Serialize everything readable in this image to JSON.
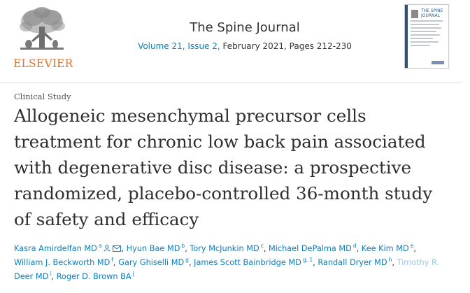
{
  "publisher": {
    "name": "ELSEVIER"
  },
  "journal": {
    "title": "The Spine Journal",
    "volume_issue": "Volume 21, Issue 2,",
    "date_pages": " February 2021, Pages 212-230"
  },
  "cover": {
    "title": "THE SPINE JOURNAL"
  },
  "article": {
    "type": "Clinical Study",
    "title_lines": [
      "Allogeneic mesenchymal precursor cells",
      "treatment for chronic low back pain associated",
      "with degenerative disc disease: a prospective",
      "randomized, placebo-controlled 36-month study",
      "of safety and efficacy"
    ]
  },
  "authors": [
    {
      "name": "Kasra Amirdelfan MD",
      "sup": "a"
    },
    {
      "name": "Hyun Bae MD",
      "sup": "b"
    },
    {
      "name": "Tory McJunkin MD",
      "sup": "c"
    },
    {
      "name": "Michael DePalma MD",
      "sup": "d"
    },
    {
      "name": "Kee Kim MD",
      "sup": "e"
    },
    {
      "name": "William J. Beckworth MD",
      "sup": "f"
    },
    {
      "name": "Gary Ghiselli MD",
      "sup": "g"
    },
    {
      "name": "James Scott Bainbridge MD",
      "sup": "g, 1"
    },
    {
      "name": "Randall Dryer MD",
      "sup": "h"
    },
    {
      "name": "Timothy R.",
      "sup": ""
    },
    {
      "name": "Deer MD",
      "sup": "i"
    },
    {
      "name": "Roger D. Brown BA",
      "sup": "j"
    }
  ],
  "colors": {
    "link": "#0c7dbb",
    "publisher_orange": "#e9711c",
    "text": "#2e2e2e"
  },
  "icons": {
    "author_profile": "person-icon",
    "author_email": "envelope-icon"
  }
}
